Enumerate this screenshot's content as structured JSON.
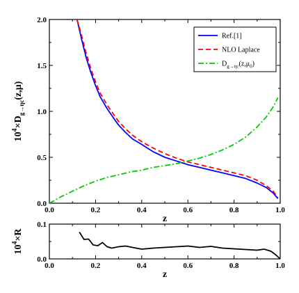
{
  "chart_data": [
    {
      "type": "line",
      "xlabel": "z",
      "ylabel_base": "10",
      "ylabel_exp": "4",
      "ylabel_mid": "×D",
      "ylabel_sub": "g→ηc",
      "ylabel_tail": "(z,μ)",
      "xlim": [
        0.0,
        1.0
      ],
      "ylim": [
        0.0,
        2.0
      ],
      "xticks": [
        "0.0",
        "0.2",
        "0.4",
        "0.6",
        "0.8",
        "1.0"
      ],
      "yticks": [
        "0.0",
        "0.5",
        "1.0",
        "1.5",
        "2.0"
      ],
      "legend_position": "top-right",
      "legend_fn": "D",
      "legend_fn_sub": "g→ηc",
      "legend_fn_arg": "(z,μ",
      "legend_fn_arg_sub": "0",
      "legend_fn_close": ")",
      "series": [
        {
          "name": "Ref.[1]",
          "color": "#0000ff",
          "style": "solid",
          "x": [
            0.12,
            0.14,
            0.16,
            0.18,
            0.2,
            0.22,
            0.25,
            0.28,
            0.3,
            0.33,
            0.36,
            0.4,
            0.45,
            0.5,
            0.55,
            0.6,
            0.65,
            0.7,
            0.75,
            0.8,
            0.85,
            0.9,
            0.94,
            0.97,
            0.99
          ],
          "y": [
            2.0,
            1.78,
            1.58,
            1.42,
            1.28,
            1.16,
            1.03,
            0.92,
            0.85,
            0.77,
            0.7,
            0.64,
            0.56,
            0.5,
            0.46,
            0.42,
            0.39,
            0.36,
            0.33,
            0.3,
            0.27,
            0.22,
            0.17,
            0.11,
            0.05
          ]
        },
        {
          "name": "NLO Laplace",
          "color": "#ff0000",
          "style": "dashed",
          "x": [
            0.12,
            0.14,
            0.16,
            0.18,
            0.2,
            0.22,
            0.25,
            0.28,
            0.3,
            0.33,
            0.36,
            0.4,
            0.45,
            0.5,
            0.55,
            0.6,
            0.65,
            0.7,
            0.75,
            0.8,
            0.85,
            0.9,
            0.94,
            0.97,
            0.99
          ],
          "y": [
            2.0,
            1.82,
            1.63,
            1.46,
            1.32,
            1.2,
            1.07,
            0.96,
            0.89,
            0.81,
            0.74,
            0.67,
            0.6,
            0.54,
            0.49,
            0.45,
            0.42,
            0.39,
            0.36,
            0.33,
            0.3,
            0.25,
            0.19,
            0.13,
            0.06
          ]
        },
        {
          "name": "",
          "color": "#00cc00",
          "style": "dashdot",
          "x": [
            0.0,
            0.05,
            0.1,
            0.15,
            0.2,
            0.25,
            0.3,
            0.35,
            0.4,
            0.45,
            0.5,
            0.55,
            0.6,
            0.65,
            0.7,
            0.75,
            0.8,
            0.85,
            0.9,
            0.94,
            0.97,
            0.99
          ],
          "y": [
            0.0,
            0.07,
            0.13,
            0.19,
            0.24,
            0.28,
            0.31,
            0.34,
            0.36,
            0.39,
            0.41,
            0.43,
            0.46,
            0.49,
            0.53,
            0.58,
            0.64,
            0.72,
            0.83,
            0.94,
            1.05,
            1.15
          ]
        }
      ]
    },
    {
      "type": "line",
      "xlabel": "z",
      "ylabel_base": "10",
      "ylabel_exp": "4",
      "ylabel_mid": "×R",
      "xlim": [
        0.0,
        1.0
      ],
      "ylim": [
        0.0,
        0.1
      ],
      "xticks": [
        "0.0",
        "0.2",
        "0.4",
        "0.6",
        "0.8",
        "1.0"
      ],
      "yticks": [
        "0.0",
        "0.1"
      ],
      "series": [
        {
          "name": "",
          "color": "#000000",
          "style": "solid",
          "x": [
            0.13,
            0.15,
            0.17,
            0.19,
            0.21,
            0.23,
            0.25,
            0.27,
            0.3,
            0.33,
            0.36,
            0.4,
            0.45,
            0.5,
            0.55,
            0.6,
            0.65,
            0.7,
            0.75,
            0.8,
            0.85,
            0.9,
            0.93,
            0.96,
            0.98,
            1.0
          ],
          "y": [
            0.077,
            0.056,
            0.057,
            0.04,
            0.038,
            0.047,
            0.035,
            0.031,
            0.035,
            0.037,
            0.033,
            0.028,
            0.031,
            0.033,
            0.035,
            0.037,
            0.033,
            0.036,
            0.031,
            0.029,
            0.027,
            0.025,
            0.028,
            0.022,
            0.012,
            0.0
          ]
        }
      ]
    }
  ]
}
